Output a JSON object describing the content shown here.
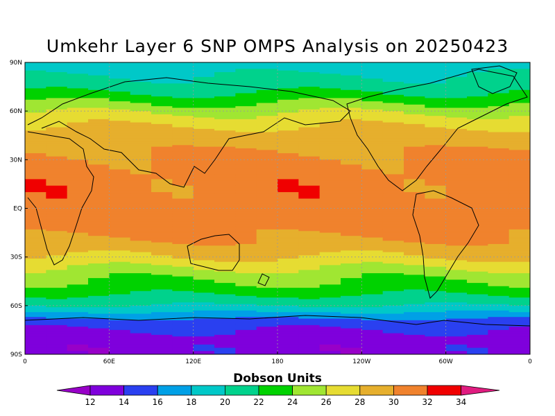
{
  "title": "Umkehr Layer 6 SNP OMPS Analysis on 20250423",
  "map": {
    "lat_ticks": [
      "90N",
      "60N",
      "30N",
      "EQ",
      "30S",
      "60S",
      "90S"
    ],
    "lon_ticks": [
      "0",
      "60E",
      "120E",
      "180",
      "120W",
      "60W",
      "0"
    ]
  },
  "colorbar": {
    "title": "Dobson Units",
    "levels": [
      "12",
      "14",
      "16",
      "18",
      "20",
      "22",
      "24",
      "26",
      "28",
      "30",
      "32",
      "34"
    ],
    "colors": [
      "#9800c8",
      "#7f00dc",
      "#2a40f0",
      "#00a0e6",
      "#00c8c8",
      "#00d28c",
      "#00d200",
      "#a0e632",
      "#e6dc32",
      "#e6af2d",
      "#f0822d",
      "#f00000",
      "#e01c80"
    ]
  },
  "chart_data": {
    "type": "heatmap",
    "title": "Umkehr Layer 6 SNP OMPS Analysis on 20250423",
    "units": "Dobson Units",
    "x_ticks": [
      "0",
      "60E",
      "120E",
      "180",
      "120W",
      "60W",
      "0"
    ],
    "y_ticks": [
      "90N",
      "60N",
      "30N",
      "EQ",
      "30S",
      "60S",
      "90S"
    ],
    "contour_levels": [
      12,
      14,
      16,
      18,
      20,
      22,
      24,
      26,
      28,
      30,
      32,
      34
    ],
    "zonal_profile": {
      "lat": [
        90,
        75,
        65,
        55,
        45,
        35,
        20,
        0,
        -20,
        -30,
        -40,
        -50,
        -60,
        -70,
        -80,
        -90
      ],
      "value": [
        19,
        21,
        24,
        27,
        29,
        30,
        31,
        31,
        30,
        28,
        25,
        23,
        20,
        15,
        13,
        13
      ]
    }
  }
}
